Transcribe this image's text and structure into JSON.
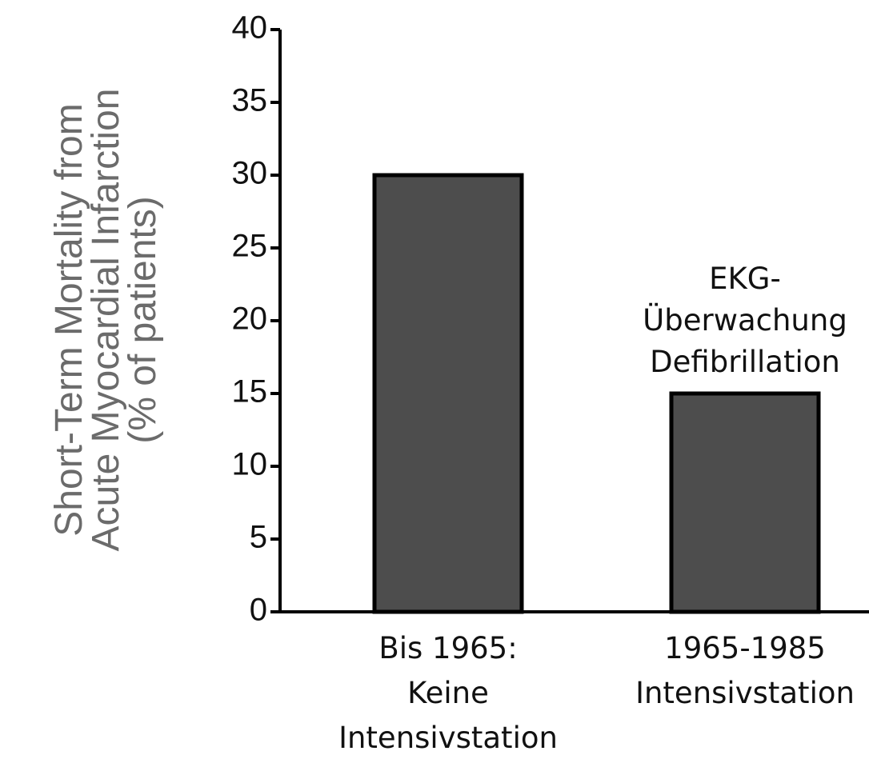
{
  "chart_data": {
    "type": "bar",
    "ylabel": "Short-Term Mortality from\nAcute Myocardial Infarction\n(% of patients)",
    "categories": [
      "Bis 1965:\nKeine\nIntensivstation",
      "1965-1985\nIntensivstation"
    ],
    "values": [
      30,
      15
    ],
    "color": "#4d4d4d",
    "annotation": "EKG-\nÜberwachung\nDefibrillation",
    "ylim": [
      0,
      40
    ],
    "yticks": [
      0,
      5,
      10,
      15,
      20,
      25,
      30,
      35,
      40
    ],
    "grid": false
  }
}
